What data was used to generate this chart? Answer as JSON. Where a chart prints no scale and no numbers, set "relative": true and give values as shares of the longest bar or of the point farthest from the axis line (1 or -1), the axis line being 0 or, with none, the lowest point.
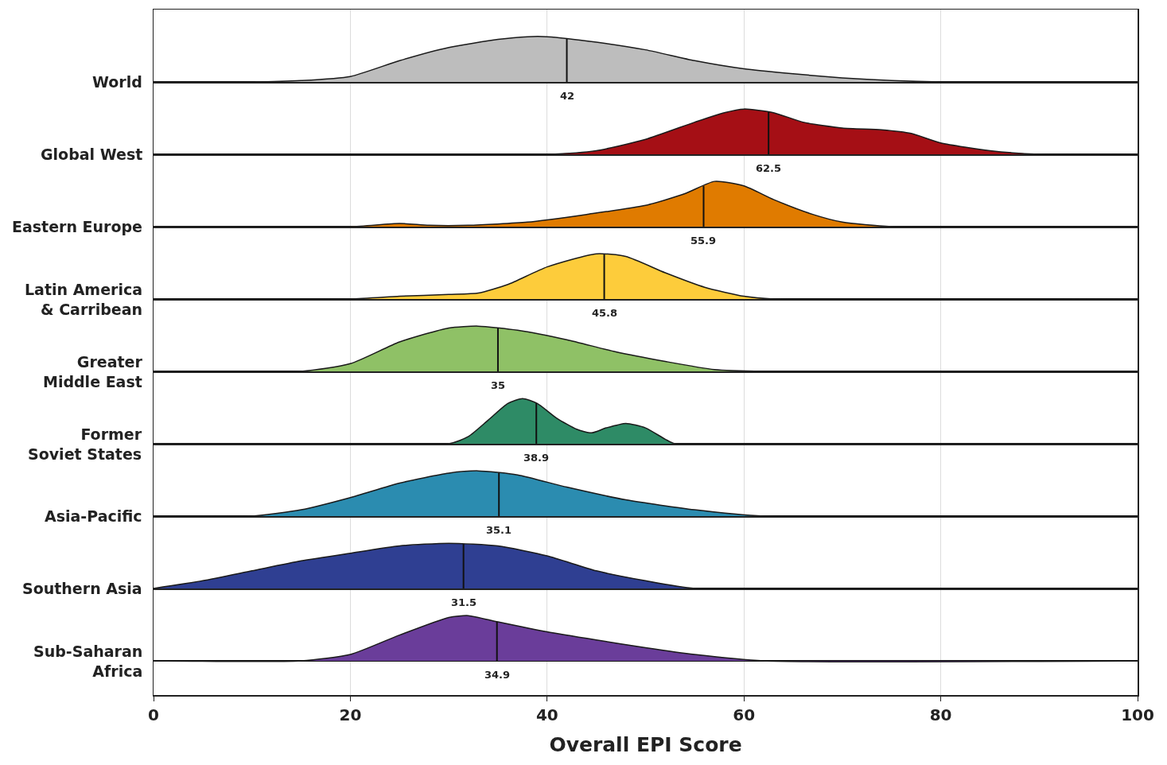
{
  "chart_data": [
    {
      "type": "area",
      "ylabel": "World",
      "x": [
        0,
        10,
        15,
        20,
        25,
        30,
        35,
        38,
        40,
        45,
        50,
        55,
        60,
        65,
        70,
        75,
        80,
        90,
        100
      ],
      "values": [
        0,
        0,
        0.03,
        0.12,
        0.47,
        0.76,
        0.94,
        1,
        1,
        0.88,
        0.71,
        0.47,
        0.29,
        0.18,
        0.09,
        0.03,
        0,
        0,
        0
      ],
      "color": "#bdbdbd",
      "relative": true,
      "ref_lines": [
        {
          "axis": "x",
          "value": 42,
          "label": "42"
        }
      ],
      "xlim": [
        0,
        100
      ],
      "xticks": [
        0,
        20,
        40,
        60,
        80,
        100
      ],
      "grid": "x",
      "tick_labels": false
    },
    {
      "type": "area",
      "ylabel": "Global West",
      "x": [
        0,
        40,
        45,
        50,
        55,
        58,
        60,
        63,
        66,
        70,
        74,
        77,
        80,
        85,
        90,
        100
      ],
      "values": [
        0,
        0,
        0.08,
        0.33,
        0.71,
        0.92,
        1,
        0.92,
        0.71,
        0.58,
        0.54,
        0.46,
        0.25,
        0.08,
        0,
        0
      ],
      "color": "#a50f15",
      "relative": true,
      "ref_lines": [
        {
          "axis": "x",
          "value": 62.5,
          "label": "62.5"
        }
      ],
      "xlim": [
        0,
        100
      ],
      "xticks": [
        0,
        20,
        40,
        60,
        80,
        100
      ],
      "grid": "x",
      "tick_labels": false
    },
    {
      "type": "area",
      "ylabel": "Eastern Europe",
      "x": [
        0,
        20,
        25,
        28,
        32,
        38,
        44,
        50,
        54,
        57,
        60,
        63,
        67,
        70,
        75,
        100
      ],
      "values": [
        0,
        0,
        0.07,
        0.03,
        0.03,
        0.1,
        0.27,
        0.47,
        0.73,
        1,
        0.9,
        0.6,
        0.27,
        0.1,
        0,
        0
      ],
      "color": "#e07b00",
      "relative": true,
      "ref_lines": [
        {
          "axis": "x",
          "value": 55.9,
          "label": "55.9"
        }
      ],
      "xlim": [
        0,
        100
      ],
      "xticks": [
        0,
        20,
        40,
        60,
        80,
        100
      ],
      "grid": "x",
      "tick_labels": false
    },
    {
      "type": "area",
      "ylabel": "Latin America\n& Carribean",
      "x": [
        0,
        20,
        25,
        30,
        33,
        36,
        40,
        45,
        48,
        52,
        56,
        60,
        63,
        100
      ],
      "values": [
        0,
        0,
        0.06,
        0.1,
        0.13,
        0.32,
        0.71,
        1,
        0.94,
        0.58,
        0.26,
        0.06,
        0,
        0
      ],
      "color": "#fdcc3b",
      "relative": true,
      "ref_lines": [
        {
          "axis": "x",
          "value": 45.8,
          "label": "45.8"
        }
      ],
      "xlim": [
        0,
        100
      ],
      "xticks": [
        0,
        20,
        40,
        60,
        80,
        100
      ],
      "grid": "x",
      "tick_labels": false
    },
    {
      "type": "area",
      "ylabel": "Greater\nMiddle East",
      "x": [
        0,
        15,
        20,
        25,
        30,
        33,
        37,
        42,
        47,
        52,
        57,
        62,
        100
      ],
      "values": [
        0,
        0,
        0.17,
        0.65,
        0.96,
        1,
        0.91,
        0.7,
        0.43,
        0.22,
        0.04,
        0,
        0
      ],
      "color": "#8fc166",
      "relative": true,
      "ref_lines": [
        {
          "axis": "x",
          "value": 35,
          "label": "35"
        }
      ],
      "xlim": [
        0,
        100
      ],
      "xticks": [
        0,
        20,
        40,
        60,
        80,
        100
      ],
      "grid": "x",
      "tick_labels": false
    },
    {
      "type": "area",
      "ylabel": "Former\nSoviet States",
      "x": [
        0,
        30,
        32,
        34,
        36,
        37.5,
        39,
        41,
        43,
        44.5,
        46,
        48,
        50,
        52,
        53,
        100
      ],
      "values": [
        0,
        0,
        0.16,
        0.52,
        0.89,
        1,
        0.89,
        0.56,
        0.32,
        0.24,
        0.35,
        0.45,
        0.35,
        0.1,
        0,
        0
      ],
      "color": "#2e8b66",
      "relative": true,
      "ref_lines": [
        {
          "axis": "x",
          "value": 38.9,
          "label": "38.9"
        }
      ],
      "xlim": [
        0,
        100
      ],
      "xticks": [
        0,
        20,
        40,
        60,
        80,
        100
      ],
      "grid": "x",
      "tick_labels": false
    },
    {
      "type": "area",
      "ylabel": "Asia-Pacific",
      "x": [
        0,
        10,
        15,
        20,
        25,
        30,
        33,
        37,
        42,
        48,
        55,
        62,
        100
      ],
      "values": [
        0,
        0,
        0.14,
        0.41,
        0.73,
        0.95,
        1,
        0.91,
        0.64,
        0.36,
        0.14,
        0,
        0
      ],
      "color": "#2b8cb0",
      "relative": true,
      "ref_lines": [
        {
          "axis": "x",
          "value": 35.1,
          "label": "35.1"
        }
      ],
      "xlim": [
        0,
        100
      ],
      "xticks": [
        0,
        20,
        40,
        60,
        80,
        100
      ],
      "grid": "x",
      "tick_labels": false
    },
    {
      "type": "area",
      "ylabel": "Southern Asia",
      "x": [
        0,
        5,
        10,
        15,
        20,
        25,
        30,
        35,
        40,
        45,
        50,
        55,
        100
      ],
      "values": [
        0,
        0.17,
        0.39,
        0.61,
        0.78,
        0.94,
        1,
        0.94,
        0.72,
        0.39,
        0.17,
        0,
        0
      ],
      "color": "#2f3f92",
      "relative": true,
      "ref_lines": [
        {
          "axis": "x",
          "value": 31.5,
          "label": "31.5"
        }
      ],
      "xlim": [
        0,
        100
      ],
      "xticks": [
        0,
        20,
        40,
        60,
        80,
        100
      ],
      "grid": "x",
      "tick_labels": false
    },
    {
      "type": "area",
      "ylabel": "Sub-Saharan\nAfrica",
      "xlabel": "Overall EPI Score",
      "x": [
        0,
        15,
        20,
        25,
        30,
        32,
        35,
        40,
        45,
        50,
        55,
        62,
        100
      ],
      "values": [
        0,
        0,
        0.14,
        0.57,
        0.96,
        1,
        0.86,
        0.64,
        0.46,
        0.29,
        0.14,
        0,
        0
      ],
      "color": "#6a3d9a",
      "relative": true,
      "ref_lines": [
        {
          "axis": "x",
          "value": 34.9,
          "label": "34.9"
        }
      ],
      "xlim": [
        0,
        100
      ],
      "xticks": [
        0,
        20,
        40,
        60,
        80,
        100
      ],
      "grid": "x",
      "tick_labels": "x"
    }
  ]
}
